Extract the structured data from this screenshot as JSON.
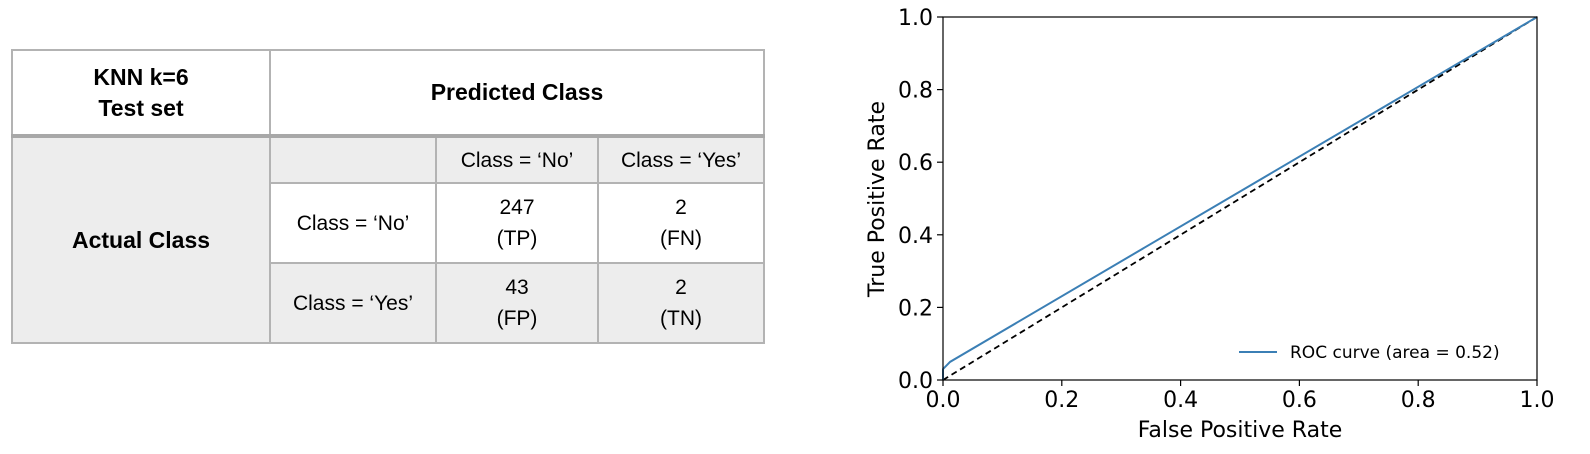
{
  "table": {
    "corner_line1": "KNN k=6",
    "corner_line2": "Test set",
    "predicted_header": "Predicted Class",
    "actual_header": "Actual Class",
    "col_headers": [
      "Class = ‘No’",
      "Class = ‘Yes’"
    ],
    "rows": [
      {
        "label": "Class = ‘No’",
        "cells": [
          {
            "value": "247",
            "tag": "(TP)"
          },
          {
            "value": "2",
            "tag": "(FN)"
          }
        ]
      },
      {
        "label": "Class = ‘Yes’",
        "cells": [
          {
            "value": "43",
            "tag": "(FP)"
          },
          {
            "value": "2",
            "tag": "(TN)"
          }
        ]
      }
    ]
  },
  "chart_data": {
    "type": "line",
    "xlabel": "False Positive Rate",
    "ylabel": "True Positive Rate",
    "xlim": [
      0.0,
      1.0
    ],
    "ylim": [
      0.0,
      1.0
    ],
    "xticks": [
      "0.0",
      "0.2",
      "0.4",
      "0.6",
      "0.8",
      "1.0"
    ],
    "yticks": [
      "0.0",
      "0.2",
      "0.4",
      "0.6",
      "0.8",
      "1.0"
    ],
    "grid": false,
    "legend_position": "bottom-right",
    "series": [
      {
        "name": "ROC curve (area = 0.52)",
        "color": "#3b7fb5",
        "style": "solid",
        "x": [
          0.0,
          0.0,
          0.012,
          1.0
        ],
        "y": [
          0.0,
          0.03,
          0.05,
          1.0
        ]
      }
    ],
    "reference_line": {
      "color": "#000000",
      "style": "dashed",
      "x": [
        0.0,
        1.0
      ],
      "y": [
        0.0,
        1.0
      ]
    }
  }
}
